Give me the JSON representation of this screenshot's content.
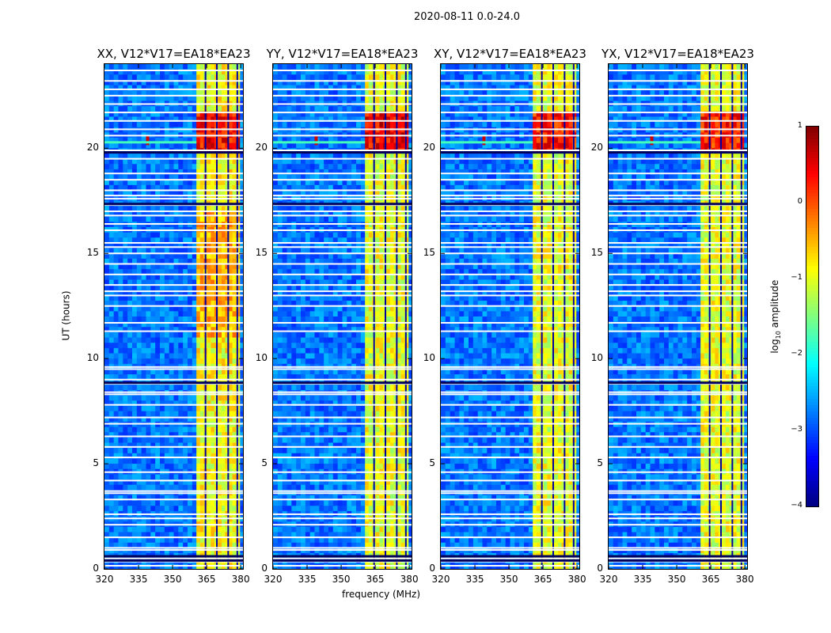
{
  "figure": {
    "suptitle": "2020-08-11 0.0-24.0"
  },
  "chart_data": {
    "type": "heatmap",
    "suptitle": "2020-08-11 0.0-24.0",
    "xlabel": "frequency (MHz)",
    "ylabel": "UT (hours)",
    "xlim": [
      320,
      381
    ],
    "ylim": [
      0,
      24
    ],
    "xticks": [
      320,
      335,
      350,
      365,
      380
    ],
    "yticks": [
      0,
      5,
      10,
      15,
      20
    ],
    "colorbar": {
      "label_main": "log",
      "label_sub": "10",
      "label_rest": " amplitude",
      "range": [
        -4,
        1
      ],
      "ticks": [
        1,
        0,
        -1,
        -2,
        -3,
        -4
      ],
      "tick_labels": [
        "1",
        "0",
        "−1",
        "−2",
        "−3",
        "−4"
      ],
      "colormap": "jet"
    },
    "panels": [
      {
        "title": "XX, V12*V17=EA18*EA23",
        "base_log_amp": -2.8,
        "band_log_amp": -0.9,
        "peak_log_amp": 0.8
      },
      {
        "title": "YY, V12*V17=EA18*EA23",
        "base_log_amp": -2.8,
        "band_log_amp": -1.0,
        "peak_log_amp": 0.9
      },
      {
        "title": "XY, V12*V17=EA18*EA23",
        "base_log_amp": -2.8,
        "band_log_amp": -1.0,
        "peak_log_amp": 0.7
      },
      {
        "title": "YX, V12*V17=EA18*EA23",
        "base_log_amp": -2.8,
        "band_log_amp": -1.0,
        "peak_log_amp": 0.7
      }
    ],
    "rfi_band_mhz": [
      360.5,
      379.5
    ],
    "rfi_subband_gaps_mhz": [
      364.5,
      369.5,
      374.5,
      378.5
    ],
    "narrow_spike_mhz": 339,
    "narrow_spike_ut": 20.3,
    "strong_rfi_ut_range": [
      19.7,
      21.8
    ],
    "flagged_ut_rows": [
      0.15,
      0.35,
      0.5,
      0.9,
      1.0,
      1.5,
      2.1,
      2.4,
      2.6,
      3.3,
      3.6,
      3.7,
      4.2,
      4.6,
      5.3,
      5.8,
      6.3,
      6.9,
      7.2,
      7.8,
      8.3,
      8.4,
      8.8,
      9.0,
      9.5,
      9.6,
      11.3,
      11.7,
      12.5,
      13.0,
      13.2,
      13.5,
      14.0,
      14.5,
      15.0,
      15.3,
      15.5,
      16.1,
      16.4,
      16.8,
      17.0,
      17.3,
      17.6,
      17.75,
      18.0,
      18.5,
      18.8,
      19.5,
      19.9,
      20.6,
      20.9,
      21.3,
      21.7,
      22.1,
      22.5,
      22.8,
      23.2,
      23.7
    ],
    "dark_ut_rows": [
      0.4,
      0.6,
      8.85,
      17.35,
      19.8
    ]
  }
}
